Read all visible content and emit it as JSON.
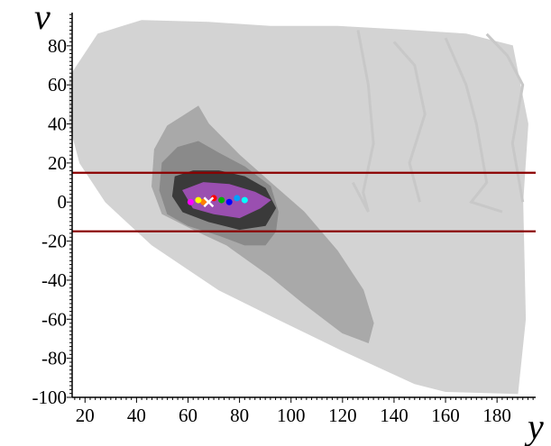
{
  "chart_data": {
    "type": "scatter",
    "title": "",
    "xlabel": "y",
    "ylabel": "v",
    "xlim": [
      15,
      195
    ],
    "ylim": [
      -100,
      97
    ],
    "x_ticks": [
      20,
      40,
      60,
      80,
      100,
      120,
      140,
      160,
      180
    ],
    "y_ticks": [
      -100,
      -80,
      -60,
      -40,
      -20,
      0,
      20,
      40,
      60,
      80
    ],
    "grid": false,
    "legend": "none",
    "density_regions": [
      {
        "level": "outer",
        "color": "#d3d3d3",
        "points": [
          [
            14,
            64
          ],
          [
            25,
            86
          ],
          [
            42,
            93
          ],
          [
            68,
            92
          ],
          [
            92,
            90
          ],
          [
            118,
            90
          ],
          [
            145,
            88
          ],
          [
            168,
            86
          ],
          [
            186,
            80
          ],
          [
            192,
            40
          ],
          [
            190,
            0
          ],
          [
            191,
            -60
          ],
          [
            188,
            -98
          ],
          [
            160,
            -97
          ],
          [
            148,
            -93
          ],
          [
            120,
            -76
          ],
          [
            95,
            -60
          ],
          [
            72,
            -45
          ],
          [
            46,
            -22
          ],
          [
            28,
            0
          ],
          [
            18,
            20
          ],
          [
            14,
            40
          ]
        ]
      },
      {
        "level": "middle",
        "color": "#a9a9a9",
        "points": [
          [
            47,
            27
          ],
          [
            52,
            39
          ],
          [
            58,
            44
          ],
          [
            64,
            49
          ],
          [
            68,
            40
          ],
          [
            80,
            24
          ],
          [
            92,
            10
          ],
          [
            105,
            -5
          ],
          [
            118,
            -25
          ],
          [
            128,
            -45
          ],
          [
            132,
            -62
          ],
          [
            130,
            -72
          ],
          [
            120,
            -67
          ],
          [
            105,
            -52
          ],
          [
            92,
            -38
          ],
          [
            75,
            -22
          ],
          [
            62,
            -14
          ],
          [
            50,
            -6
          ],
          [
            46,
            8
          ]
        ]
      },
      {
        "level": "inner",
        "color": "#8a8a8a",
        "points": [
          [
            50,
            20
          ],
          [
            56,
            28
          ],
          [
            64,
            31
          ],
          [
            72,
            25
          ],
          [
            82,
            18
          ],
          [
            92,
            8
          ],
          [
            95,
            -5
          ],
          [
            94,
            -15
          ],
          [
            90,
            -22
          ],
          [
            82,
            -22
          ],
          [
            72,
            -17
          ],
          [
            60,
            -12
          ],
          [
            52,
            -6
          ],
          [
            49,
            6
          ]
        ]
      },
      {
        "level": "core",
        "color": "#3a3a3a",
        "points": [
          [
            55,
            13
          ],
          [
            62,
            16
          ],
          [
            72,
            16
          ],
          [
            82,
            13
          ],
          [
            90,
            7
          ],
          [
            94,
            -3
          ],
          [
            90,
            -12
          ],
          [
            80,
            -14
          ],
          [
            68,
            -10
          ],
          [
            58,
            -5
          ],
          [
            54,
            3
          ]
        ]
      },
      {
        "level": "hot",
        "color": "#9a4fb0",
        "points": [
          [
            58,
            6
          ],
          [
            66,
            10
          ],
          [
            76,
            9
          ],
          [
            86,
            5
          ],
          [
            92,
            1
          ],
          [
            88,
            -3
          ],
          [
            80,
            -8
          ],
          [
            70,
            -6
          ],
          [
            62,
            -3
          ]
        ]
      }
    ],
    "wandering_trajectories": [
      [
        [
          126,
          88
        ],
        [
          130,
          60
        ],
        [
          132,
          30
        ],
        [
          128,
          5
        ],
        [
          130,
          -5
        ],
        [
          124,
          10
        ]
      ],
      [
        [
          140,
          82
        ],
        [
          148,
          70
        ],
        [
          152,
          45
        ],
        [
          146,
          20
        ],
        [
          150,
          0
        ]
      ],
      [
        [
          160,
          84
        ],
        [
          168,
          60
        ],
        [
          172,
          40
        ],
        [
          176,
          10
        ],
        [
          170,
          0
        ],
        [
          182,
          -5
        ]
      ],
      [
        [
          176,
          86
        ],
        [
          184,
          75
        ],
        [
          190,
          60
        ],
        [
          186,
          30
        ],
        [
          190,
          0
        ]
      ]
    ],
    "colored_points": [
      {
        "x": 66,
        "y": 0,
        "color": "#ff7f00"
      },
      {
        "x": 70,
        "y": 2,
        "color": "#ff0000"
      },
      {
        "x": 73,
        "y": 1,
        "color": "#00b000"
      },
      {
        "x": 76,
        "y": 0,
        "color": "#0000ff"
      },
      {
        "x": 64,
        "y": 1,
        "color": "#ffff00"
      },
      {
        "x": 79,
        "y": 2,
        "color": "#00a0ff"
      },
      {
        "x": 61,
        "y": 0,
        "color": "#ff00ff"
      },
      {
        "x": 82,
        "y": 1,
        "color": "#00ffff"
      },
      {
        "x": 68,
        "y": 0,
        "color": "#ffffff",
        "marker": "x"
      }
    ],
    "horizontal_lines": [
      {
        "y": 15,
        "color": "#8b0000"
      },
      {
        "y": -15,
        "color": "#8b0000"
      }
    ]
  }
}
